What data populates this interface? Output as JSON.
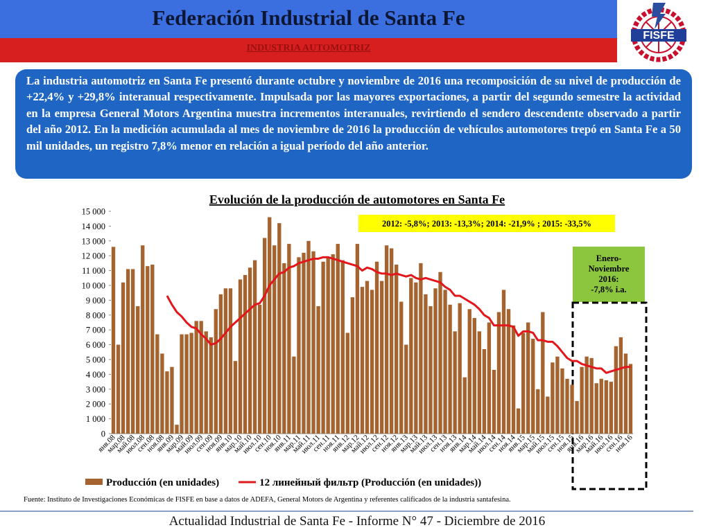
{
  "header": {
    "title": "Federación Industrial de Santa Fe",
    "subtitle": "INDUSTRIA AUTOMOTRIZ",
    "logo": "FISFE"
  },
  "intro": "La industria automotriz en Santa Fe presentó durante octubre y noviembre de 2016 una recomposición de su nivel de producción de +22,4% y +29,8% interanual respectivamente. Impulsada por las mayores exportaciones, a partir del segundo semestre la actividad en la empresa General Motors Argentina muestra incrementos interanuales, revirtiendo el sendero descendente observado a partir del año 2012. En la medición acumulada al mes de noviembre de 2016 la producción de vehículos automotores trepó en Santa Fe a 50 mil unidades, un registro 7,8% menor en relación a igual período del año anterior.",
  "chart_data": {
    "type": "bar",
    "title": "Evolución de la producción de automotores en Santa Fe",
    "annotation": "2012: -5,8%;  2013: -13,3%; 2014: -21,9% ; 2015: -33,5%",
    "highlight": [
      "Enero-",
      "Noviembre",
      "2016:",
      "-7,8% i.a."
    ],
    "categories": [
      "янв.08",
      null,
      "мар.08",
      null,
      "май.08",
      null,
      "июл.08",
      null,
      "сен.08",
      null,
      "ноя.08",
      null,
      "янв.09",
      null,
      "мар.09",
      null,
      "май.09",
      null,
      "июл.09",
      null,
      "сен.09",
      null,
      "ноя.09",
      null,
      "янв.10",
      null,
      "мар.10",
      null,
      "май.10",
      null,
      "июл.10",
      null,
      "сен.10",
      null,
      "ноя.10",
      null,
      "янв.11",
      null,
      "мар.11",
      null,
      "май.11",
      null,
      "июл.11",
      null,
      "сен.11",
      null,
      "ноя.11",
      null,
      "янв.12",
      null,
      "мар.12",
      null,
      "май.12",
      null,
      "июл.12",
      null,
      "сен.12",
      null,
      "ноя.12",
      null,
      "янв.13",
      null,
      "мар.13",
      null,
      "май.13",
      null,
      "июл.13",
      null,
      "сен.13",
      null,
      "ноя.13",
      null,
      "янв.14",
      null,
      "мар.14",
      null,
      "май.14",
      null,
      "июл.14",
      null,
      "сен.14",
      null,
      "ноя.14",
      null,
      "янв.15",
      null,
      "мар.15",
      null,
      "май.15",
      null,
      "июл.15",
      null,
      "сен.15",
      null,
      "ноя.15",
      null,
      "янв.16",
      null,
      "мар.16",
      null,
      "май.16",
      null,
      "июл.16",
      null,
      "сен.16",
      null,
      "ноя.16"
    ],
    "series": [
      {
        "name": "Producción (en unidades)",
        "type": "bar",
        "color": "#a5642f",
        "values": [
          12600,
          6000,
          10200,
          11100,
          11100,
          8600,
          12700,
          11300,
          11400,
          6700,
          5400,
          4200,
          4500,
          600,
          6700,
          6700,
          6800,
          7600,
          7600,
          6900,
          6500,
          8400,
          9400,
          9800,
          9800,
          4900,
          10400,
          10700,
          11200,
          11700,
          8700,
          13200,
          14600,
          12700,
          14200,
          11500,
          12800,
          5200,
          11900,
          12200,
          13000,
          12300,
          8600,
          11600,
          11900,
          12100,
          12800,
          11700,
          6800,
          9200,
          12800,
          9900,
          10300,
          9700,
          11600,
          10300,
          12700,
          12500,
          11400,
          8900,
          6000,
          10500,
          10200,
          11500,
          9400,
          8600,
          9800,
          10900,
          9700,
          8700,
          6900,
          8800,
          3800,
          8400,
          7800,
          6900,
          5700,
          7500,
          4300,
          8200,
          9700,
          8400,
          7300,
          1700,
          6800,
          7500,
          6400,
          3000,
          8200,
          2500,
          4800,
          5200,
          4400,
          3700,
          3300,
          2200,
          4500,
          5200,
          5100,
          3400,
          3700,
          3600,
          3500,
          5900,
          6500,
          5400,
          4700
        ]
      },
      {
        "name": "12 линейный фильтр (Producción (en unidades))",
        "type": "line",
        "color": "#e3161c",
        "values": [
          null,
          null,
          null,
          null,
          null,
          null,
          null,
          null,
          null,
          null,
          null,
          9300,
          8700,
          8200,
          7900,
          7500,
          7200,
          7100,
          6700,
          6400,
          6000,
          6100,
          6400,
          6800,
          7200,
          7500,
          7800,
          8100,
          8400,
          8700,
          8800,
          9300,
          10000,
          10400,
          10800,
          10900,
          11200,
          11300,
          11500,
          11600,
          11700,
          11800,
          11800,
          11900,
          11900,
          11800,
          11700,
          11600,
          11500,
          11400,
          11300,
          11000,
          11200,
          11100,
          10900,
          10800,
          10800,
          10700,
          10800,
          10700,
          10600,
          10700,
          10500,
          10400,
          10500,
          10400,
          10300,
          10200,
          9900,
          9700,
          9300,
          9300,
          9100,
          8900,
          8700,
          8400,
          8000,
          7800,
          7300,
          7300,
          7300,
          7300,
          7200,
          6600,
          6900,
          6900,
          6800,
          6300,
          6300,
          6200,
          6200,
          5900,
          5500,
          5100,
          4900,
          4900,
          4700,
          4600,
          4500,
          4400,
          4400,
          4100,
          4200,
          4300,
          4400,
          4500,
          4500
        ]
      }
    ],
    "ylim": [
      0,
      15000
    ],
    "yticks": [
      0,
      {
        "value": 1000,
        "label": "1 000"
      },
      {
        "value": 2000,
        "label": "2 000"
      },
      {
        "value": 3000,
        "label": "3 000"
      },
      {
        "value": 4000,
        "label": "4 000"
      },
      {
        "value": 5000,
        "label": "5 000"
      },
      {
        "value": 6000,
        "label": "6 000"
      },
      {
        "value": 7000,
        "label": "7 000"
      },
      {
        "value": 8000,
        "label": "8 000"
      },
      {
        "value": 9000,
        "label": "9 000"
      },
      {
        "value": 10000,
        "label": "10 000"
      },
      {
        "value": 11000,
        "label": "11 000"
      },
      {
        "value": 12000,
        "label": "12 000"
      },
      {
        "value": 13000,
        "label": "13 000"
      },
      {
        "value": 14000,
        "label": "14 000"
      },
      {
        "value": 15000,
        "label": "15 000"
      }
    ],
    "legend": "bottom",
    "grid": false
  },
  "source": "Fuente: Instituto de Investigaciones Económicas de FISFE en base a datos de ADEFA, General Motors de Argentina y referentes calificados de la industria santafesina.",
  "footer": "Actualidad Industrial de Santa Fe - Informe N° 47 - Diciembre de 2016"
}
